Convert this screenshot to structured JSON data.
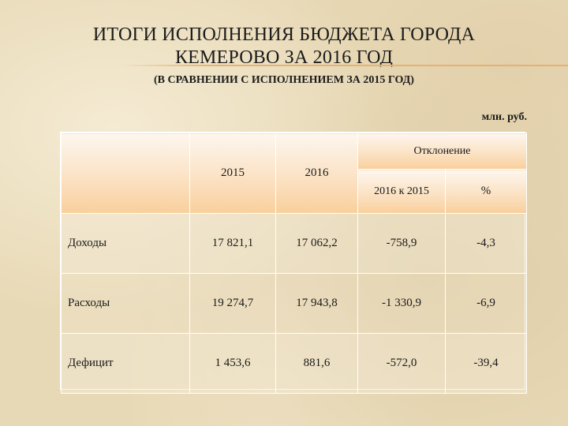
{
  "slide": {
    "title_line1": "ИТОГИ  ИСПОЛНЕНИЯ БЮДЖЕТА ГОРОДА",
    "title_line2": "КЕМЕРОВО ЗА 2016 ГОД",
    "subtitle": "(В СРАВНЕНИИ С ИСПОЛНЕНИЕМ ЗА 2015 ГОД)",
    "units": "млн. руб."
  },
  "table": {
    "headers": {
      "corner": "",
      "year_2015": "2015",
      "year_2016": "2016",
      "deviation": "Отклонение",
      "dev_abs": "2016 к 2015",
      "dev_pct": "%"
    },
    "rows": [
      {
        "label": "Доходы",
        "y2015": "17 821,1",
        "y2016": "17 062,2",
        "dev_abs": "-758,9",
        "dev_pct": "-4,3"
      },
      {
        "label": "Расходы",
        "y2015": "19 274,7",
        "y2016": "17 943,8",
        "dev_abs": "-1 330,9",
        "dev_pct": "-6,9"
      },
      {
        "label": "Дефицит",
        "y2015": "1 453,6",
        "y2016": "881,6",
        "dev_abs": "-572,0",
        "dev_pct": "-39,4"
      }
    ]
  }
}
